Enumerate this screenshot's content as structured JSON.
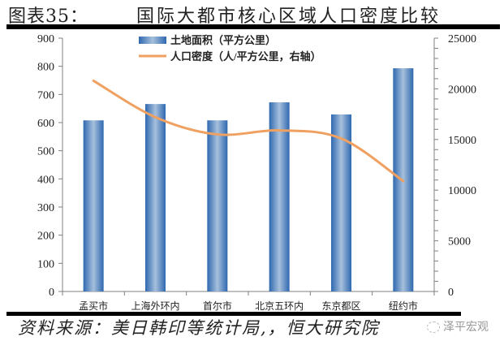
{
  "header": {
    "figure_number": "图表35：",
    "title": "国际大都市核心区域人口密度比较"
  },
  "footer": {
    "source": "资料来源：美日韩印等统计局,，恒大研究院",
    "watermark": "泽平宏观"
  },
  "legend": {
    "bar_label": "土地面积（平方公里）",
    "line_label": "人口密度（人/平方公里，右轴）"
  },
  "colors": {
    "bar": "#3a74b8",
    "bar_highlight": "#9ab8d8",
    "line": "#f0a060",
    "axis": "#808080"
  },
  "chart_data": {
    "type": "bar",
    "title": "国际大都市核心区域人口密度比较",
    "categories": [
      "孟买市",
      "上海外环内",
      "首尔市",
      "北京五环内",
      "东京都区",
      "纽约市"
    ],
    "series": [
      {
        "name": "土地面积（平方公里）",
        "type": "bar",
        "axis": "left",
        "values": [
          608,
          666,
          608,
          672,
          629,
          793
        ]
      },
      {
        "name": "人口密度（人/平方公里，右轴）",
        "type": "line",
        "axis": "right",
        "values": [
          20800,
          17200,
          15500,
          15900,
          15100,
          10900
        ]
      }
    ],
    "xlabel": "",
    "ylabel": "",
    "ylim": [
      0,
      900
    ],
    "y_ticks": [
      0,
      100,
      200,
      300,
      400,
      500,
      600,
      700,
      800,
      900
    ],
    "y2lim": [
      0,
      25000
    ],
    "y2_ticks": [
      0,
      5000,
      10000,
      15000,
      20000,
      25000
    ],
    "grid": false,
    "legend_position": "top-center"
  }
}
